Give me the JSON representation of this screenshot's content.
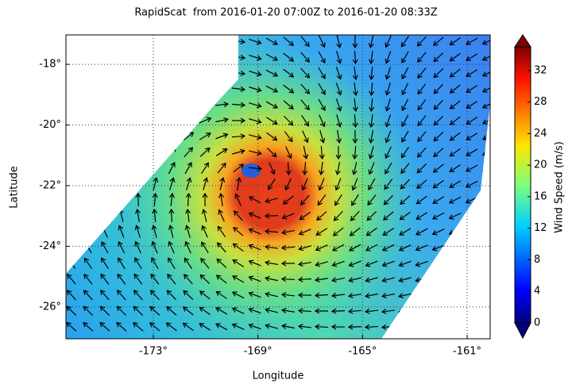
{
  "chart_data": {
    "type": "wind-map",
    "title": "RapidScat  from 2016-01-20 07:00Z to 2016-01-20 08:33Z",
    "x_label": "Longitude",
    "y_label": "Latitude",
    "colorbar_label": "Wind Speed (m/s)",
    "xlim": [
      -176.34,
      -160.12
    ],
    "ylim": [
      -27.05,
      -17.03
    ],
    "xticks": [
      {
        "value": -173,
        "label": "-173°"
      },
      {
        "value": -169,
        "label": "-169°"
      },
      {
        "value": -165,
        "label": "-165°"
      },
      {
        "value": -161,
        "label": "-161°"
      }
    ],
    "yticks": [
      {
        "value": -18,
        "label": "-18°"
      },
      {
        "value": -20,
        "label": "-20°"
      },
      {
        "value": -22,
        "label": "-22°"
      },
      {
        "value": -24,
        "label": "-24°"
      },
      {
        "value": -26,
        "label": "-26°"
      }
    ],
    "clim": [
      0,
      35
    ],
    "cticks": [
      0,
      4,
      8,
      12,
      16,
      20,
      24,
      28,
      32
    ],
    "grid": true
  }
}
